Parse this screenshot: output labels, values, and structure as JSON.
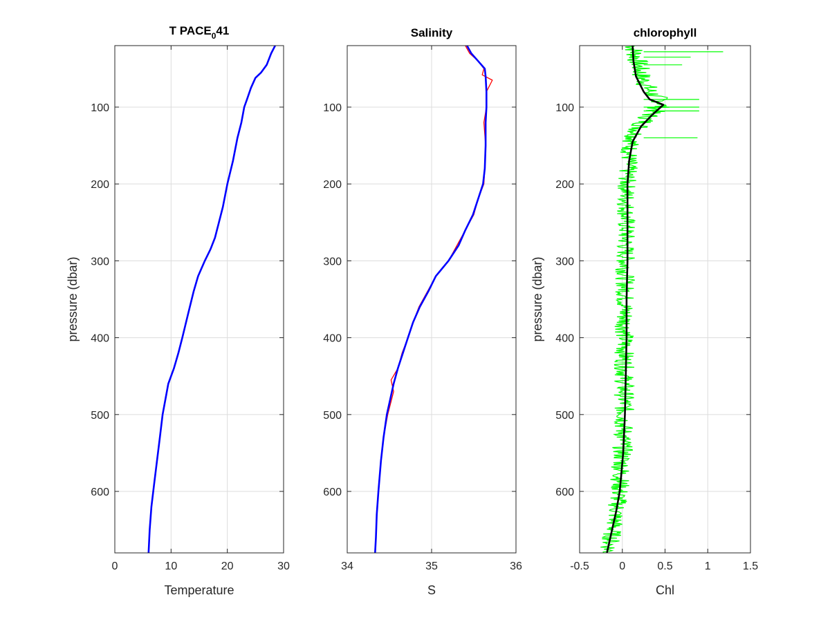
{
  "chart_data": [
    {
      "type": "line",
      "title_main": "T PACE",
      "title_sub": "0",
      "title_tail": "41",
      "xlabel": "Temperature",
      "ylabel": "pressure (dbar)",
      "xlim": [
        0,
        30
      ],
      "ylim": [
        20,
        680
      ],
      "y_reversed": true,
      "grid": true,
      "xticks": [
        0,
        10,
        20,
        30
      ],
      "yticks": [
        100,
        200,
        300,
        400,
        500,
        600
      ],
      "series": [
        {
          "color": "#0000ff",
          "points": [
            [
              28.5,
              20
            ],
            [
              27.8,
              30
            ],
            [
              27.0,
              45
            ],
            [
              26.0,
              55
            ],
            [
              25.0,
              62
            ],
            [
              24.2,
              75
            ],
            [
              23.5,
              90
            ],
            [
              23.0,
              100
            ],
            [
              22.5,
              120
            ],
            [
              21.8,
              140
            ],
            [
              21.0,
              170
            ],
            [
              20.0,
              200
            ],
            [
              19.2,
              230
            ],
            [
              18.5,
              250
            ],
            [
              17.8,
              270
            ],
            [
              17.0,
              285
            ],
            [
              16.0,
              300
            ],
            [
              14.8,
              320
            ],
            [
              14.0,
              340
            ],
            [
              13.0,
              370
            ],
            [
              12.0,
              400
            ],
            [
              11.3,
              420
            ],
            [
              10.5,
              440
            ],
            [
              9.5,
              460
            ],
            [
              9.0,
              480
            ],
            [
              8.5,
              500
            ],
            [
              8.0,
              530
            ],
            [
              7.5,
              560
            ],
            [
              7.0,
              590
            ],
            [
              6.5,
              620
            ],
            [
              6.2,
              650
            ],
            [
              6.0,
              680
            ]
          ]
        }
      ]
    },
    {
      "type": "line",
      "title": "Salinity",
      "xlabel": "S",
      "xlim": [
        34,
        36
      ],
      "ylim": [
        20,
        680
      ],
      "y_reversed": true,
      "grid": true,
      "xticks": [
        34,
        35,
        36
      ],
      "yticks": [
        100,
        200,
        300,
        400,
        500,
        600
      ],
      "series": [
        {
          "color": "#ff0000",
          "style": "raw",
          "points": [
            [
              35.4,
              20
            ],
            [
              35.45,
              30
            ],
            [
              35.55,
              40
            ],
            [
              35.62,
              50
            ],
            [
              35.6,
              58
            ],
            [
              35.72,
              65
            ],
            [
              35.65,
              80
            ],
            [
              35.65,
              100
            ],
            [
              35.62,
              120
            ],
            [
              35.64,
              150
            ],
            [
              35.63,
              180
            ],
            [
              35.62,
              200
            ],
            [
              35.55,
              220
            ],
            [
              35.5,
              240
            ],
            [
              35.4,
              260
            ],
            [
              35.3,
              280
            ],
            [
              35.2,
              300
            ],
            [
              35.05,
              320
            ],
            [
              34.95,
              340
            ],
            [
              34.85,
              360
            ],
            [
              34.78,
              380
            ],
            [
              34.72,
              400
            ],
            [
              34.65,
              420
            ],
            [
              34.6,
              440
            ],
            [
              34.52,
              455
            ],
            [
              34.55,
              470
            ],
            [
              34.48,
              500
            ],
            [
              34.43,
              530
            ],
            [
              34.4,
              560
            ],
            [
              34.37,
              600
            ],
            [
              34.35,
              630
            ],
            [
              34.34,
              660
            ],
            [
              34.33,
              680
            ]
          ]
        },
        {
          "color": "#0000ff",
          "style": "smoothed",
          "points": [
            [
              35.42,
              20
            ],
            [
              35.47,
              30
            ],
            [
              35.55,
              40
            ],
            [
              35.63,
              50
            ],
            [
              35.64,
              60
            ],
            [
              35.65,
              80
            ],
            [
              35.65,
              100
            ],
            [
              35.64,
              120
            ],
            [
              35.64,
              150
            ],
            [
              35.63,
              180
            ],
            [
              35.61,
              200
            ],
            [
              35.55,
              220
            ],
            [
              35.49,
              240
            ],
            [
              35.4,
              260
            ],
            [
              35.32,
              280
            ],
            [
              35.2,
              300
            ],
            [
              35.05,
              320
            ],
            [
              34.96,
              340
            ],
            [
              34.86,
              360
            ],
            [
              34.78,
              380
            ],
            [
              34.72,
              400
            ],
            [
              34.66,
              420
            ],
            [
              34.6,
              440
            ],
            [
              34.55,
              460
            ],
            [
              34.51,
              480
            ],
            [
              34.47,
              500
            ],
            [
              34.43,
              530
            ],
            [
              34.4,
              560
            ],
            [
              34.37,
              600
            ],
            [
              34.35,
              630
            ],
            [
              34.34,
              660
            ],
            [
              34.33,
              680
            ]
          ]
        }
      ]
    },
    {
      "type": "line",
      "title": "chlorophyll",
      "xlabel": "Chl",
      "ylabel": "pressure (dbar)",
      "xlim": [
        -0.5,
        1.5
      ],
      "ylim": [
        20,
        680
      ],
      "y_reversed": true,
      "grid": true,
      "xticks": [
        -0.5,
        0,
        0.5,
        1,
        1.5
      ],
      "yticks": [
        100,
        200,
        300,
        400,
        500,
        600
      ],
      "series": [
        {
          "color": "#00ff00",
          "style": "raw",
          "band": [
            [
              20,
              0.0,
              0.25
            ],
            [
              40,
              0.05,
              0.3
            ],
            [
              60,
              0.1,
              0.35
            ],
            [
              80,
              0.2,
              0.45
            ],
            [
              95,
              0.35,
              0.62
            ],
            [
              110,
              0.2,
              0.45
            ],
            [
              130,
              0.05,
              0.3
            ],
            [
              150,
              -0.02,
              0.2
            ],
            [
              180,
              -0.05,
              0.18
            ],
            [
              200,
              -0.06,
              0.16
            ],
            [
              300,
              -0.08,
              0.15
            ],
            [
              400,
              -0.09,
              0.14
            ],
            [
              500,
              -0.1,
              0.14
            ],
            [
              550,
              -0.12,
              0.12
            ],
            [
              600,
              -0.15,
              0.08
            ],
            [
              640,
              -0.2,
              0.02
            ],
            [
              680,
              -0.28,
              -0.05
            ]
          ],
          "spikes": [
            [
              28,
              1.18
            ],
            [
              35,
              0.8
            ],
            [
              45,
              0.7
            ],
            [
              90,
              0.9
            ],
            [
              100,
              0.9
            ],
            [
              105,
              0.9
            ],
            [
              140,
              0.88
            ]
          ]
        },
        {
          "color": "#000000",
          "style": "smoothed",
          "points": [
            [
              0.12,
              20
            ],
            [
              0.13,
              40
            ],
            [
              0.16,
              60
            ],
            [
              0.25,
              80
            ],
            [
              0.32,
              90
            ],
            [
              0.48,
              97
            ],
            [
              0.35,
              110
            ],
            [
              0.22,
              125
            ],
            [
              0.12,
              145
            ],
            [
              0.08,
              170
            ],
            [
              0.06,
              200
            ],
            [
              0.06,
              250
            ],
            [
              0.06,
              300
            ],
            [
              0.05,
              350
            ],
            [
              0.05,
              400
            ],
            [
              0.04,
              450
            ],
            [
              0.03,
              500
            ],
            [
              0.01,
              550
            ],
            [
              -0.03,
              600
            ],
            [
              -0.07,
              625
            ],
            [
              -0.12,
              650
            ],
            [
              -0.18,
              680
            ]
          ]
        }
      ]
    }
  ]
}
